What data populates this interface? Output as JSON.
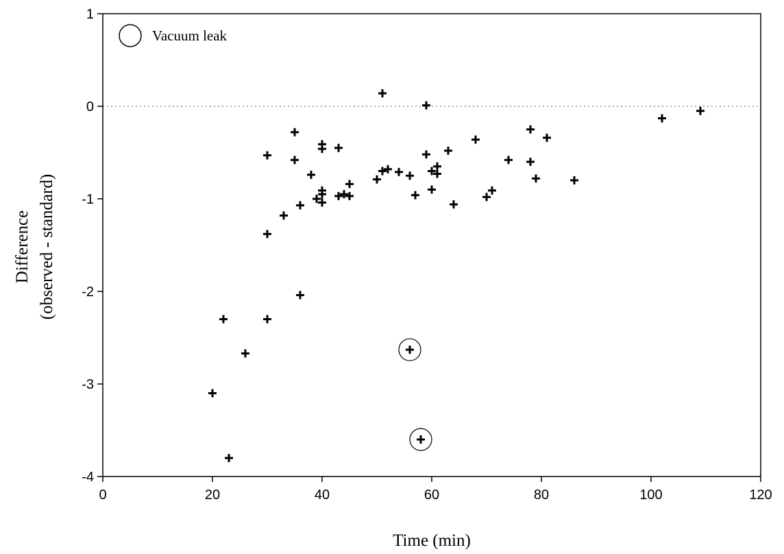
{
  "chart_data": {
    "type": "scatter",
    "xlabel": "Time (min)",
    "ylabel_line1": "Difference",
    "ylabel_line2": "(observed - standard)",
    "xlim": [
      0,
      120
    ],
    "ylim": [
      -4,
      1
    ],
    "xticks": [
      0,
      20,
      40,
      60,
      80,
      100,
      120
    ],
    "yticks": [
      -4,
      -3,
      -2,
      -1,
      0,
      1
    ],
    "reference_line": {
      "y": 0,
      "style": "dotted"
    },
    "legend": {
      "label": "Vacuum leak",
      "marker": "open circle",
      "placement": "top-left"
    },
    "marker": "plus",
    "points": [
      {
        "x": 20,
        "y": -3.1
      },
      {
        "x": 22,
        "y": -2.3
      },
      {
        "x": 23,
        "y": -3.8
      },
      {
        "x": 26,
        "y": -2.67
      },
      {
        "x": 30,
        "y": -0.53
      },
      {
        "x": 30,
        "y": -1.38
      },
      {
        "x": 30,
        "y": -2.3
      },
      {
        "x": 33,
        "y": -1.18
      },
      {
        "x": 35,
        "y": -0.28
      },
      {
        "x": 35,
        "y": -0.58
      },
      {
        "x": 36,
        "y": -1.07
      },
      {
        "x": 36,
        "y": -2.04
      },
      {
        "x": 38,
        "y": -0.74
      },
      {
        "x": 39,
        "y": -1.0
      },
      {
        "x": 40,
        "y": -0.41
      },
      {
        "x": 40,
        "y": -0.46
      },
      {
        "x": 40,
        "y": -0.91
      },
      {
        "x": 40,
        "y": -0.95
      },
      {
        "x": 40,
        "y": -1.04
      },
      {
        "x": 43,
        "y": -0.45
      },
      {
        "x": 43,
        "y": -0.97
      },
      {
        "x": 44,
        "y": -0.95
      },
      {
        "x": 45,
        "y": -0.84
      },
      {
        "x": 45,
        "y": -0.97
      },
      {
        "x": 50,
        "y": -0.79
      },
      {
        "x": 51,
        "y": 0.14
      },
      {
        "x": 51,
        "y": -0.7
      },
      {
        "x": 52,
        "y": -0.68
      },
      {
        "x": 54,
        "y": -0.71
      },
      {
        "x": 56,
        "y": -0.75
      },
      {
        "x": 57,
        "y": -0.96
      },
      {
        "x": 59,
        "y": 0.01
      },
      {
        "x": 59,
        "y": -0.52
      },
      {
        "x": 60,
        "y": -0.7
      },
      {
        "x": 60,
        "y": -0.9
      },
      {
        "x": 61,
        "y": -0.65
      },
      {
        "x": 61,
        "y": -0.73
      },
      {
        "x": 63,
        "y": -0.48
      },
      {
        "x": 64,
        "y": -1.06
      },
      {
        "x": 68,
        "y": -0.36
      },
      {
        "x": 70,
        "y": -0.98
      },
      {
        "x": 71,
        "y": -0.91
      },
      {
        "x": 74,
        "y": -0.58
      },
      {
        "x": 78,
        "y": -0.25
      },
      {
        "x": 78,
        "y": -0.6
      },
      {
        "x": 79,
        "y": -0.78
      },
      {
        "x": 81,
        "y": -0.34
      },
      {
        "x": 86,
        "y": -0.8
      },
      {
        "x": 102,
        "y": -0.13
      },
      {
        "x": 109,
        "y": -0.05
      },
      {
        "x": 56,
        "y": -2.63,
        "vacuum_leak": true
      },
      {
        "x": 58,
        "y": -3.6,
        "vacuum_leak": true
      }
    ]
  }
}
